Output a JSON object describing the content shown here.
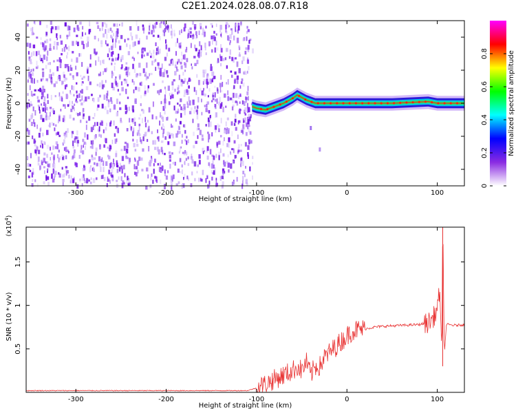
{
  "figure": {
    "title": "C2E1.2024.028.08.07.R18"
  },
  "chart_data": [
    {
      "type": "heatmap",
      "panel": "top",
      "title": "",
      "xlabel": "Height of straight line (km)",
      "ylabel": "Frequency (Hz)",
      "xlim": [
        -355,
        130
      ],
      "ylim": [
        -50,
        50
      ],
      "x_ticks": [
        -300,
        -200,
        -100,
        0,
        100
      ],
      "y_ticks": [
        -40,
        -20,
        0,
        20,
        40
      ],
      "noise_region": {
        "x": [
          -355,
          -105
        ],
        "description_value": "broadband noise"
      },
      "signal_trace": [
        {
          "x": -105,
          "y": -2
        },
        {
          "x": -100,
          "y": -3
        },
        {
          "x": -90,
          "y": -4
        },
        {
          "x": -80,
          "y": -2
        },
        {
          "x": -70,
          "y": 0
        },
        {
          "x": -60,
          "y": 3
        },
        {
          "x": -55,
          "y": 5
        },
        {
          "x": -45,
          "y": 2
        },
        {
          "x": -35,
          "y": 0
        },
        {
          "x": -20,
          "y": 0
        },
        {
          "x": 0,
          "y": 0
        },
        {
          "x": 50,
          "y": 0
        },
        {
          "x": 90,
          "y": 1
        },
        {
          "x": 100,
          "y": 0
        },
        {
          "x": 130,
          "y": 0
        }
      ],
      "tail_points": [
        {
          "x": -40,
          "y": -15,
          "amp": 0.3
        },
        {
          "x": -30,
          "y": -28,
          "amp": 0.15
        }
      ],
      "colorbar": {
        "label": "Normalized spectral amplitude",
        "range": [
          0.0,
          1.0
        ],
        "ticks": [
          0.0,
          0.2,
          0.4,
          0.6,
          0.8
        ],
        "colors": [
          "#ffffff",
          "#8a2be2",
          "#0000ff",
          "#00ffff",
          "#00ff00",
          "#ffff00",
          "#ff0000",
          "#ff00ff"
        ]
      },
      "grid": false
    },
    {
      "type": "line",
      "panel": "bottom",
      "title": "",
      "xlabel": "Height of straight line (km)",
      "ylabel": "SNR (10 * v/v)",
      "y_multiplier": "(x10",
      "y_multiplier_exp": "4",
      "y_multiplier_close": ")",
      "xlim": [
        -355,
        130
      ],
      "ylim": [
        0,
        1.9
      ],
      "x_ticks": [
        -300,
        -200,
        -100,
        0,
        100
      ],
      "y_ticks": [
        0.5,
        1.0,
        1.5
      ],
      "series": [
        {
          "color": "#e83030",
          "x": [
            -355,
            -300,
            -200,
            -110,
            -100,
            -90,
            -80,
            -70,
            -60,
            -55,
            -50,
            -45,
            -40,
            -35,
            -30,
            -25,
            -20,
            -15,
            -10,
            -5,
            0,
            5,
            10,
            20,
            30,
            40,
            60,
            80,
            90,
            95,
            100,
            103,
            105,
            106,
            108,
            110,
            120,
            130
          ],
          "y": [
            0.02,
            0.02,
            0.02,
            0.02,
            0.05,
            0.1,
            0.15,
            0.2,
            0.25,
            0.3,
            0.25,
            0.35,
            0.2,
            0.3,
            0.3,
            0.4,
            0.45,
            0.5,
            0.55,
            0.6,
            0.65,
            0.7,
            0.72,
            0.73,
            0.75,
            0.76,
            0.77,
            0.78,
            0.8,
            0.85,
            0.95,
            1.2,
            0.3,
            1.9,
            0.4,
            0.78,
            0.77,
            0.78
          ]
        }
      ],
      "grid": false
    }
  ]
}
